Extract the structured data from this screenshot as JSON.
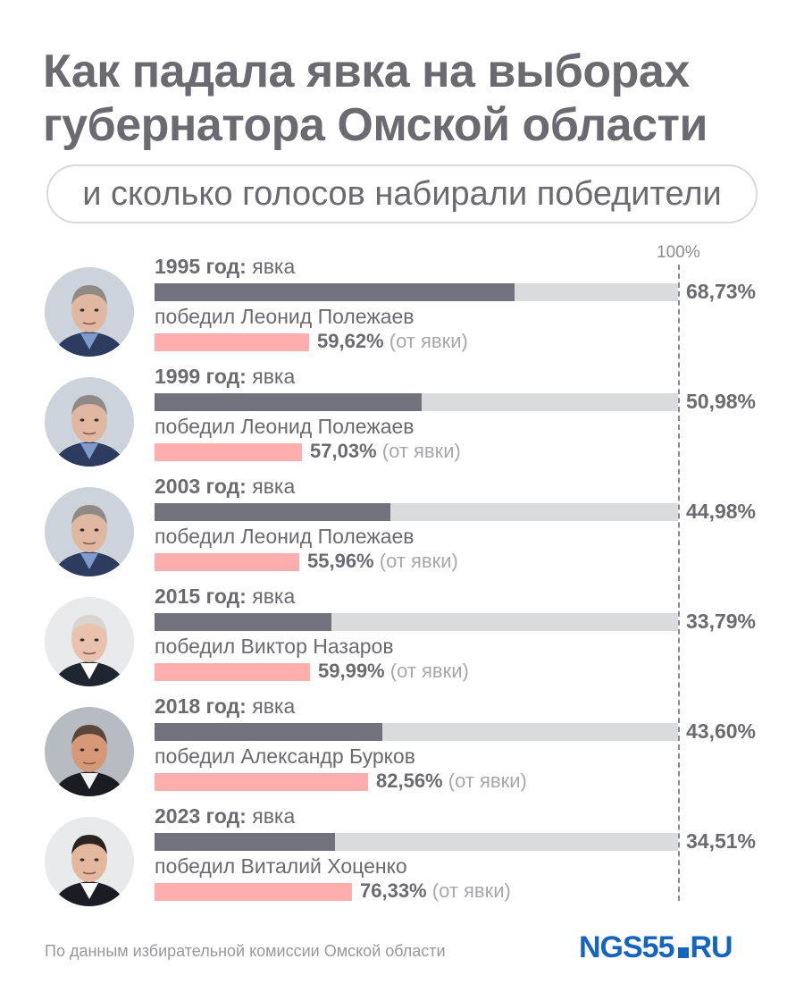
{
  "title": "Как падала явка на выборах губернатора Омской области",
  "subtitle": "и сколько голосов набирали победители",
  "source_note": "По данным избирательной комиссии Омской области",
  "logo": {
    "main": "NGS55",
    "suffix": "RU"
  },
  "colors": {
    "turnout": "#72727c",
    "track": "#d9dbdd",
    "winner": "#ffadad",
    "text": "#6a6a70",
    "logo": "#1565c0"
  },
  "chart_data": {
    "type": "bar",
    "max_label": "100%",
    "xlim": [
      0,
      100
    ],
    "rows": [
      {
        "year": "1995 год:",
        "turnout_word": "явка",
        "turnout": 68.73,
        "turnout_label": "68,73%",
        "winner": "победил Леонид Полежаев",
        "winner_share": 59.62,
        "winner_label": "59,62%",
        "winner_note": "(от явки)",
        "photo": "polezhaev"
      },
      {
        "year": "1999 год:",
        "turnout_word": "явка",
        "turnout": 50.98,
        "turnout_label": "50,98%",
        "winner": "победил Леонид Полежаев",
        "winner_share": 57.03,
        "winner_label": "57,03%",
        "winner_note": "(от явки)",
        "photo": "polezhaev"
      },
      {
        "year": "2003 год:",
        "turnout_word": "явка",
        "turnout": 44.98,
        "turnout_label": "44,98%",
        "winner": "победил Леонид Полежаев",
        "winner_share": 55.96,
        "winner_label": "55,96%",
        "winner_note": "(от явки)",
        "photo": "polezhaev"
      },
      {
        "year": "2015 год:",
        "turnout_word": "явка",
        "turnout": 33.79,
        "turnout_label": "33,79%",
        "winner": "победил Виктор Назаров",
        "winner_share": 59.99,
        "winner_label": "59,99%",
        "winner_note": "(от явки)",
        "photo": "nazarov"
      },
      {
        "year": "2018 год:",
        "turnout_word": "явка",
        "turnout": 43.6,
        "turnout_label": "43,60%",
        "winner": "победил Александр Бурков",
        "winner_share": 82.56,
        "winner_label": "82,56%",
        "winner_note": "(от явки)",
        "photo": "burkov"
      },
      {
        "year": "2023 год:",
        "turnout_word": "явка",
        "turnout": 34.51,
        "turnout_label": "34,51%",
        "winner": "победил Виталий Хоценко",
        "winner_share": 76.33,
        "winner_label": "76,33%",
        "winner_note": "(от явки)",
        "photo": "khotsenko"
      }
    ]
  }
}
